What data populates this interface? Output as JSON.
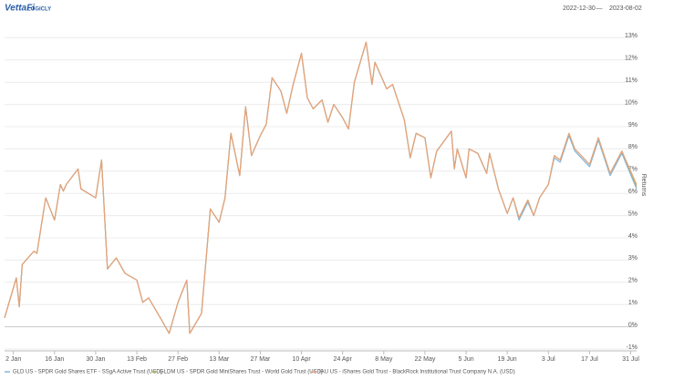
{
  "header": {
    "logo": "VettaFi",
    "logo_sub": "LOGICLY",
    "date_from": "2022-12-30",
    "range_separator": "—",
    "date_to": "2023-08-02"
  },
  "chart_data": {
    "type": "line",
    "y_label": "Returns",
    "x": [
      "2022-12-30",
      "2023-01-03",
      "2023-01-04",
      "2023-01-05",
      "2023-01-09",
      "2023-01-10",
      "2023-01-13",
      "2023-01-16",
      "2023-01-18",
      "2023-01-19",
      "2023-01-20",
      "2023-01-24",
      "2023-01-25",
      "2023-01-30",
      "2023-02-01",
      "2023-02-03",
      "2023-02-06",
      "2023-02-09",
      "2023-02-13",
      "2023-02-15",
      "2023-02-17",
      "2023-02-21",
      "2023-02-24",
      "2023-02-27",
      "2023-03-02",
      "2023-03-03",
      "2023-03-07",
      "2023-03-10",
      "2023-03-13",
      "2023-03-15",
      "2023-03-17",
      "2023-03-20",
      "2023-03-22",
      "2023-03-24",
      "2023-03-27",
      "2023-03-29",
      "2023-03-31",
      "2023-04-03",
      "2023-04-05",
      "2023-04-07",
      "2023-04-10",
      "2023-04-12",
      "2023-04-14",
      "2023-04-17",
      "2023-04-19",
      "2023-04-21",
      "2023-04-24",
      "2023-04-26",
      "2023-04-28",
      "2023-05-02",
      "2023-05-04",
      "2023-05-05",
      "2023-05-09",
      "2023-05-11",
      "2023-05-15",
      "2023-05-17",
      "2023-05-19",
      "2023-05-22",
      "2023-05-24",
      "2023-05-26",
      "2023-05-31",
      "2023-06-01",
      "2023-06-02",
      "2023-06-05",
      "2023-06-06",
      "2023-06-09",
      "2023-06-12",
      "2023-06-13",
      "2023-06-16",
      "2023-06-19",
      "2023-06-21",
      "2023-06-23",
      "2023-06-26",
      "2023-06-28",
      "2023-06-30",
      "2023-07-03",
      "2023-07-05",
      "2023-07-07",
      "2023-07-10",
      "2023-07-12",
      "2023-07-17",
      "2023-07-20",
      "2023-07-24",
      "2023-07-28",
      "2023-08-02"
    ],
    "xlim": [
      "2022-12-30",
      "2023-08-02"
    ],
    "xticks": [
      {
        "value": "2023-01-02",
        "label": "2 Jan"
      },
      {
        "value": "2023-01-16",
        "label": "16 Jan"
      },
      {
        "value": "2023-01-30",
        "label": "30 Jan"
      },
      {
        "value": "2023-02-13",
        "label": "13 Feb"
      },
      {
        "value": "2023-02-27",
        "label": "27 Feb"
      },
      {
        "value": "2023-03-13",
        "label": "13 Mar"
      },
      {
        "value": "2023-03-27",
        "label": "27 Mar"
      },
      {
        "value": "2023-04-10",
        "label": "10 Apr"
      },
      {
        "value": "2023-04-24",
        "label": "24 Apr"
      },
      {
        "value": "2023-05-08",
        "label": "8 May"
      },
      {
        "value": "2023-05-22",
        "label": "22 May"
      },
      {
        "value": "2023-06-05",
        "label": "5 Jun"
      },
      {
        "value": "2023-06-19",
        "label": "19 Jun"
      },
      {
        "value": "2023-07-03",
        "label": "3 Jul"
      },
      {
        "value": "2023-07-17",
        "label": "17 Jul"
      },
      {
        "value": "2023-07-31",
        "label": "31 Jul"
      }
    ],
    "ylim": [
      -1,
      14
    ],
    "yticks": [
      {
        "value": -1,
        "label": "-1%"
      },
      {
        "value": 0,
        "label": "0%"
      },
      {
        "value": 1,
        "label": "1%"
      },
      {
        "value": 2,
        "label": "2%"
      },
      {
        "value": 3,
        "label": "3%"
      },
      {
        "value": 4,
        "label": "4%"
      },
      {
        "value": 5,
        "label": "5%"
      },
      {
        "value": 6,
        "label": "6%"
      },
      {
        "value": 7,
        "label": "7%"
      },
      {
        "value": 8,
        "label": "8%"
      },
      {
        "value": 9,
        "label": "9%"
      },
      {
        "value": 10,
        "label": "10%"
      },
      {
        "value": 11,
        "label": "11%"
      },
      {
        "value": 12,
        "label": "12%"
      },
      {
        "value": 13,
        "label": "13%"
      }
    ],
    "grid": true,
    "series": [
      {
        "name": "GLD US - SPDR Gold Shares ETF - SSgA Active Trust (USD)",
        "color": "#7fb9dc",
        "values": [
          0.4,
          2.2,
          0.9,
          2.8,
          3.4,
          3.3,
          5.8,
          4.8,
          6.4,
          6.1,
          6.4,
          7.1,
          6.2,
          5.8,
          7.5,
          2.6,
          3.1,
          2.4,
          2.1,
          1.1,
          1.3,
          0.4,
          -0.3,
          1.1,
          2.1,
          -0.3,
          0.6,
          5.3,
          4.7,
          5.8,
          8.7,
          6.8,
          9.9,
          7.7,
          8.6,
          9.1,
          11.2,
          10.6,
          9.6,
          10.8,
          12.3,
          10.3,
          9.8,
          10.2,
          9.2,
          10.0,
          9.4,
          8.9,
          11.0,
          12.8,
          10.9,
          11.9,
          10.7,
          10.9,
          9.3,
          7.6,
          8.7,
          8.5,
          6.7,
          7.9,
          8.8,
          7.1,
          8.0,
          6.7,
          8.0,
          7.8,
          6.9,
          7.8,
          6.2,
          5.1,
          5.8,
          4.8,
          5.6,
          5.0,
          5.8,
          6.4,
          7.6,
          7.4,
          8.6,
          7.9,
          7.2,
          8.4,
          6.8,
          7.8,
          6.2
        ]
      },
      {
        "name": "GLDM US - SPDR Gold MiniShares Trust - World Gold Trust (USD)",
        "color": "#a8b36b",
        "values": [
          0.4,
          2.2,
          0.9,
          2.8,
          3.4,
          3.3,
          5.8,
          4.8,
          6.4,
          6.1,
          6.4,
          7.1,
          6.2,
          5.8,
          7.5,
          2.6,
          3.1,
          2.4,
          2.1,
          1.1,
          1.3,
          0.4,
          -0.3,
          1.1,
          2.1,
          -0.3,
          0.6,
          5.3,
          4.7,
          5.8,
          8.7,
          6.8,
          9.9,
          7.7,
          8.6,
          9.1,
          11.2,
          10.6,
          9.6,
          10.8,
          12.3,
          10.3,
          9.8,
          10.2,
          9.2,
          10.0,
          9.4,
          8.9,
          11.0,
          12.8,
          10.9,
          11.9,
          10.7,
          10.9,
          9.3,
          7.6,
          8.7,
          8.5,
          6.7,
          7.9,
          8.8,
          7.1,
          8.0,
          6.7,
          8.0,
          7.8,
          6.9,
          7.8,
          6.2,
          5.1,
          5.8,
          4.9,
          5.7,
          5.0,
          5.8,
          6.4,
          7.7,
          7.5,
          8.7,
          8.0,
          7.3,
          8.5,
          6.9,
          7.9,
          6.3
        ]
      },
      {
        "name": "IAU US - iShares Gold Trust - BlackRock Institutional Trust Company N.A. (USD)",
        "color": "#e9a27c",
        "values": [
          0.4,
          2.2,
          0.9,
          2.8,
          3.4,
          3.3,
          5.8,
          4.8,
          6.4,
          6.1,
          6.4,
          7.1,
          6.2,
          5.8,
          7.5,
          2.6,
          3.1,
          2.4,
          2.1,
          1.1,
          1.3,
          0.4,
          -0.3,
          1.1,
          2.1,
          -0.3,
          0.6,
          5.3,
          4.7,
          5.8,
          8.7,
          6.8,
          9.9,
          7.7,
          8.6,
          9.1,
          11.2,
          10.6,
          9.6,
          10.8,
          12.3,
          10.3,
          9.8,
          10.2,
          9.2,
          10.0,
          9.4,
          8.9,
          11.0,
          12.8,
          10.9,
          11.9,
          10.7,
          10.9,
          9.3,
          7.6,
          8.7,
          8.5,
          6.7,
          7.9,
          8.8,
          7.1,
          8.0,
          6.7,
          8.0,
          7.8,
          6.9,
          7.8,
          6.2,
          5.1,
          5.8,
          4.9,
          5.7,
          5.0,
          5.8,
          6.4,
          7.7,
          7.5,
          8.7,
          8.0,
          7.3,
          8.5,
          6.9,
          7.9,
          6.4
        ]
      }
    ]
  }
}
